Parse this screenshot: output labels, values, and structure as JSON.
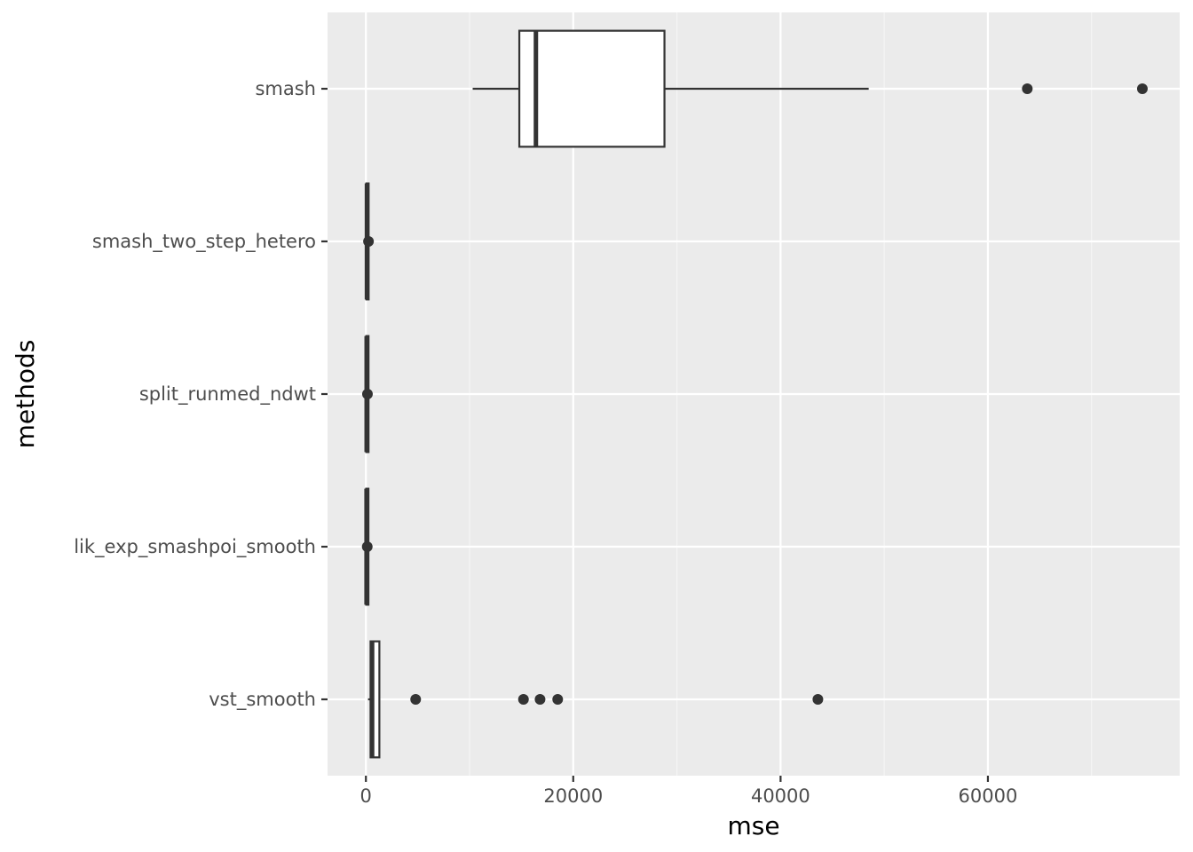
{
  "colors": {
    "panel_background": "#ebebeb",
    "grid_major": "#ffffff",
    "grid_minor": "#f5f5f5",
    "box_fill": "#ffffff",
    "box_stroke": "#333333",
    "outlier": "#333333",
    "tick_text": "#4d4d4d",
    "axis_text": "#000000"
  },
  "chart_data": {
    "type": "boxplot",
    "orientation": "horizontal",
    "xlabel": "mse",
    "ylabel": "methods",
    "xlim": [
      -3700,
      78500
    ],
    "x_ticks": [
      0,
      20000,
      40000,
      60000
    ],
    "x_tick_labels": [
      "0",
      "20000",
      "40000",
      "60000"
    ],
    "grid": true,
    "categories": [
      "smash",
      "smash_two_step_hetero",
      "split_runmed_ndwt",
      "lik_exp_smashpoi_smooth",
      "vst_smooth"
    ],
    "boxes": [
      {
        "category": "smash",
        "whisker_low": 10300,
        "q1": 14800,
        "median": 16400,
        "q3": 28800,
        "whisker_high": 48500,
        "outliers": [
          63800,
          74900
        ]
      },
      {
        "category": "smash_two_step_hetero",
        "whisker_low": 0,
        "q1": 50,
        "median": 100,
        "q3": 150,
        "whisker_high": 250,
        "outliers": [
          250
        ]
      },
      {
        "category": "split_runmed_ndwt",
        "whisker_low": 0,
        "q1": 40,
        "median": 70,
        "q3": 110,
        "whisker_high": 180,
        "outliers": [
          150
        ]
      },
      {
        "category": "lik_exp_smashpoi_smooth",
        "whisker_low": 0,
        "q1": 30,
        "median": 60,
        "q3": 100,
        "whisker_high": 170,
        "outliers": [
          130
        ]
      },
      {
        "category": "vst_smooth",
        "whisker_low": 200,
        "q1": 450,
        "median": 600,
        "q3": 1300,
        "whisker_high": 1300,
        "outliers": [
          4800,
          15200,
          16800,
          18500,
          43600
        ]
      }
    ]
  }
}
